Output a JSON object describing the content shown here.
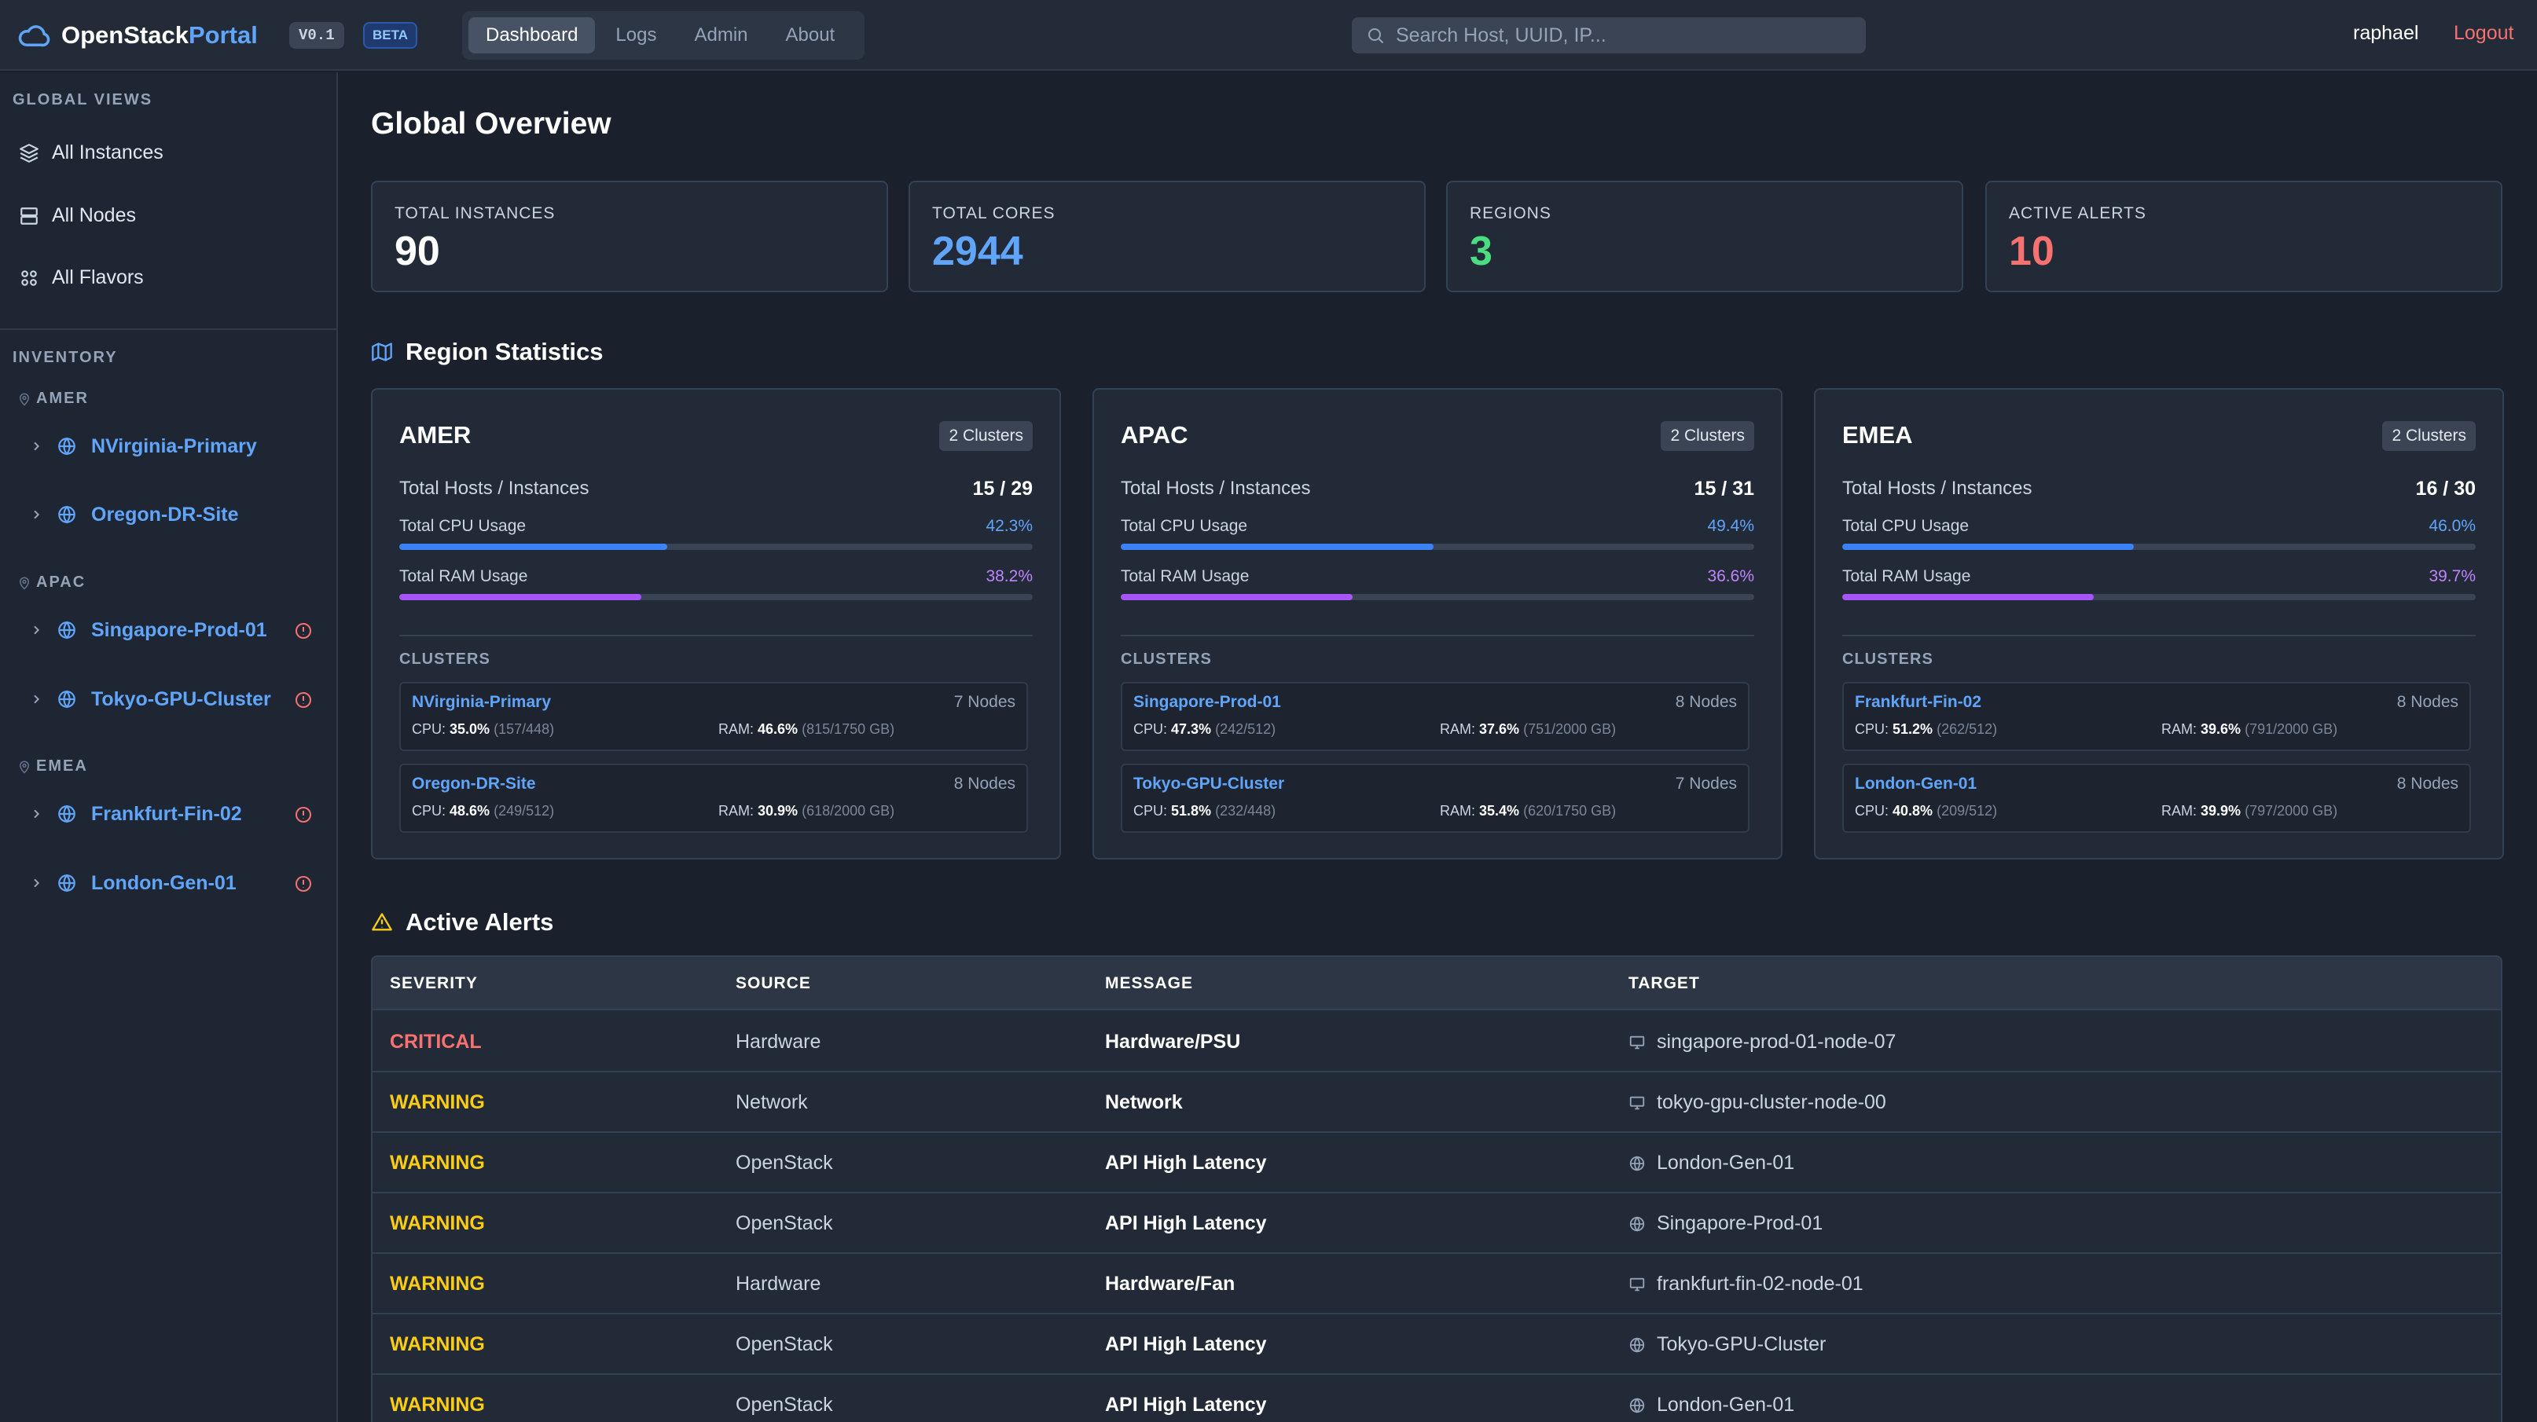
{
  "header": {
    "logo_main": "OpenStack",
    "logo_accent": "Portal",
    "version": "V0.1",
    "beta": "BETA",
    "nav": [
      "Dashboard",
      "Logs",
      "Admin",
      "About"
    ],
    "search_placeholder": "Search Host, UUID, IP...",
    "user": "raphael",
    "logout": "Logout"
  },
  "sidebar": {
    "global_title": "GLOBAL VIEWS",
    "global_items": [
      "All Instances",
      "All Nodes",
      "All Flavors"
    ],
    "inventory_title": "INVENTORY",
    "regions": [
      {
        "label": "AMER",
        "clusters": [
          "NVirginia-Primary",
          "Oregon-DR-Site"
        ]
      },
      {
        "label": "APAC",
        "clusters": [
          "Singapore-Prod-01",
          "Tokyo-GPU-Cluster"
        ]
      },
      {
        "label": "EMEA",
        "clusters": [
          "Frankfurt-Fin-02",
          "London-Gen-01"
        ]
      }
    ]
  },
  "main": {
    "title": "Global Overview",
    "stats": [
      {
        "label": "TOTAL INSTANCES",
        "value": "90"
      },
      {
        "label": "TOTAL CORES",
        "value": "2944"
      },
      {
        "label": "REGIONS",
        "value": "3"
      },
      {
        "label": "ACTIVE ALERTS",
        "value": "10"
      }
    ],
    "region_stats_title": "Region Statistics",
    "region_cards": [
      {
        "name": "AMER",
        "badge": "2 Clusters",
        "hosts_label": "Total Hosts / Instances",
        "hosts": "15 / 29",
        "cpu_label": "Total CPU Usage",
        "cpu": "42.3%",
        "cpu_pct": 42.3,
        "ram_label": "Total RAM Usage",
        "ram": "38.2%",
        "ram_pct": 38.2,
        "clusters_label": "CLUSTERS",
        "clusters": [
          {
            "name": "NVirginia-Primary",
            "nodes": "7 Nodes",
            "cpu": "35.0%",
            "cpu_detail": "(157/448)",
            "ram": "46.6%",
            "ram_detail": "(815/1750 GB)"
          },
          {
            "name": "Oregon-DR-Site",
            "nodes": "8 Nodes",
            "cpu": "48.6%",
            "cpu_detail": "(249/512)",
            "ram": "30.9%",
            "ram_detail": "(618/2000 GB)"
          }
        ]
      },
      {
        "name": "APAC",
        "badge": "2 Clusters",
        "hosts_label": "Total Hosts / Instances",
        "hosts": "15 / 31",
        "cpu_label": "Total CPU Usage",
        "cpu": "49.4%",
        "cpu_pct": 49.4,
        "ram_label": "Total RAM Usage",
        "ram": "36.6%",
        "ram_pct": 36.6,
        "clusters_label": "CLUSTERS",
        "clusters": [
          {
            "name": "Singapore-Prod-01",
            "nodes": "8 Nodes",
            "cpu": "47.3%",
            "cpu_detail": "(242/512)",
            "ram": "37.6%",
            "ram_detail": "(751/2000 GB)"
          },
          {
            "name": "Tokyo-GPU-Cluster",
            "nodes": "7 Nodes",
            "cpu": "51.8%",
            "cpu_detail": "(232/448)",
            "ram": "35.4%",
            "ram_detail": "(620/1750 GB)"
          }
        ]
      },
      {
        "name": "EMEA",
        "badge": "2 Clusters",
        "hosts_label": "Total Hosts / Instances",
        "hosts": "16 / 30",
        "cpu_label": "Total CPU Usage",
        "cpu": "46.0%",
        "cpu_pct": 46.0,
        "ram_label": "Total RAM Usage",
        "ram": "39.7%",
        "ram_pct": 39.7,
        "clusters_label": "CLUSTERS",
        "clusters": [
          {
            "name": "Frankfurt-Fin-02",
            "nodes": "8 Nodes",
            "cpu": "51.2%",
            "cpu_detail": "(262/512)",
            "ram": "39.6%",
            "ram_detail": "(791/2000 GB)"
          },
          {
            "name": "London-Gen-01",
            "nodes": "8 Nodes",
            "cpu": "40.8%",
            "cpu_detail": "(209/512)",
            "ram": "39.9%",
            "ram_detail": "(797/2000 GB)"
          }
        ]
      }
    ],
    "alerts_title": "Active Alerts",
    "alerts_columns": [
      "SEVERITY",
      "SOURCE",
      "MESSAGE",
      "TARGET"
    ],
    "alerts": [
      {
        "severity": "CRITICAL",
        "source": "Hardware",
        "message": "Hardware/PSU",
        "target": "singapore-prod-01-node-07",
        "target_icon": "server-icon"
      },
      {
        "severity": "WARNING",
        "source": "Network",
        "message": "Network",
        "target": "tokyo-gpu-cluster-node-00",
        "target_icon": "server-icon"
      },
      {
        "severity": "WARNING",
        "source": "OpenStack",
        "message": "API High Latency",
        "target": "London-Gen-01",
        "target_icon": "globe-icon"
      },
      {
        "severity": "WARNING",
        "source": "OpenStack",
        "message": "API High Latency",
        "target": "Singapore-Prod-01",
        "target_icon": "globe-icon"
      },
      {
        "severity": "WARNING",
        "source": "Hardware",
        "message": "Hardware/Fan",
        "target": "frankfurt-fin-02-node-01",
        "target_icon": "server-icon"
      },
      {
        "severity": "WARNING",
        "source": "OpenStack",
        "message": "API High Latency",
        "target": "Tokyo-GPU-Cluster",
        "target_icon": "globe-icon"
      },
      {
        "severity": "WARNING",
        "source": "OpenStack",
        "message": "API High Latency",
        "target": "London-Gen-01",
        "target_icon": "globe-icon"
      }
    ]
  },
  "colors": {
    "accent": "#60a5fa",
    "cpu_bar": "#3b82f6",
    "ram_bar": "#a855f7",
    "regions_value": "#4ade80",
    "alerts_value": "#f87171",
    "critical": "#f87171",
    "warning": "#facc15"
  }
}
